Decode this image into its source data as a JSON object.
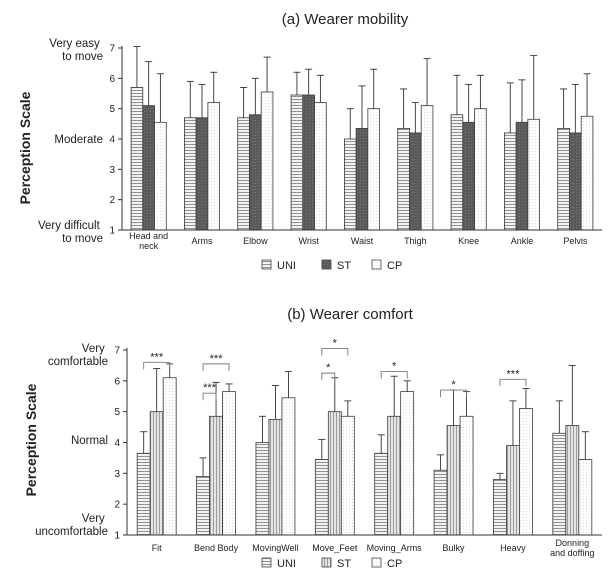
{
  "charts": [
    {
      "title": "(a) Wearer mobility",
      "ylabel": "Perception Scale",
      "ylim": [
        1,
        7
      ],
      "yticks": [
        "1",
        "2",
        "3",
        "4",
        "5",
        "6",
        "7"
      ],
      "side_labels": {
        "top": [
          "Very easy",
          "to move"
        ],
        "mid": [
          "Moderate"
        ],
        "bottom": [
          "Very difficult",
          "to move"
        ]
      },
      "legend": [
        "UNI",
        "ST",
        "CP"
      ]
    },
    {
      "title": "(b) Wearer comfort",
      "ylabel": "Perception Scale",
      "ylim": [
        1,
        7
      ],
      "yticks": [
        "1",
        "2",
        "3",
        "4",
        "5",
        "6",
        "7"
      ],
      "side_labels": {
        "top": [
          "Very",
          "comfortable"
        ],
        "mid": [
          "Normal"
        ],
        "bottom": [
          "Very",
          "uncomfortable"
        ]
      },
      "legend": [
        "UNI",
        "ST",
        "CP"
      ]
    }
  ],
  "chart_data": [
    {
      "type": "bar",
      "title": "(a) Wearer mobility",
      "ylabel": "Perception Scale",
      "ylim": [
        1,
        7
      ],
      "categories": [
        [
          "Head and",
          "neck"
        ],
        [
          "Arms"
        ],
        [
          "Elbow"
        ],
        [
          "Wrist"
        ],
        [
          "Waist"
        ],
        [
          "Thigh"
        ],
        [
          "Knee"
        ],
        [
          "Ankle"
        ],
        [
          "Pelvis"
        ]
      ],
      "series": [
        {
          "name": "UNI",
          "values": [
            5.7,
            4.7,
            4.7,
            5.45,
            4.0,
            4.35,
            4.8,
            4.2,
            4.35
          ],
          "err": [
            1.35,
            1.2,
            1.0,
            0.75,
            1.0,
            1.3,
            1.3,
            1.65,
            1.3
          ]
        },
        {
          "name": "ST",
          "values": [
            5.1,
            4.7,
            4.8,
            5.45,
            4.35,
            4.2,
            4.55,
            4.55,
            4.2
          ],
          "err": [
            1.45,
            1.1,
            1.2,
            0.85,
            1.4,
            1.0,
            1.25,
            1.4,
            1.6
          ]
        },
        {
          "name": "CP",
          "values": [
            4.55,
            5.2,
            5.55,
            5.2,
            5.0,
            5.1,
            5.0,
            4.65,
            4.75
          ],
          "err": [
            1.6,
            1.0,
            1.15,
            0.9,
            1.3,
            1.55,
            1.1,
            2.1,
            1.4
          ]
        }
      ],
      "significance": []
    },
    {
      "type": "bar",
      "title": "(b) Wearer comfort",
      "ylabel": "Perception Scale",
      "ylim": [
        1,
        7
      ],
      "categories": [
        [
          "Fit"
        ],
        [
          "Bend Body"
        ],
        [
          "MovingWell"
        ],
        [
          "Move_Feet"
        ],
        [
          "Moving_Arms"
        ],
        [
          "Bulky"
        ],
        [
          "Heavy"
        ],
        [
          "Donning",
          "and doffing"
        ]
      ],
      "series": [
        {
          "name": "UNI",
          "values": [
            3.65,
            2.9,
            4.0,
            3.45,
            3.65,
            3.1,
            2.8,
            4.3
          ],
          "err": [
            0.7,
            0.6,
            0.85,
            0.65,
            0.6,
            0.5,
            0.2,
            1.05
          ]
        },
        {
          "name": "ST",
          "values": [
            5.0,
            4.85,
            4.75,
            5.0,
            4.85,
            4.55,
            3.9,
            4.55
          ],
          "err": [
            1.4,
            1.1,
            1.1,
            1.1,
            1.3,
            1.15,
            1.45,
            1.95
          ]
        },
        {
          "name": "CP",
          "values": [
            6.1,
            5.65,
            5.45,
            4.85,
            5.65,
            4.85,
            5.1,
            3.45
          ],
          "err": [
            0.45,
            0.25,
            0.85,
            0.5,
            0.35,
            0.8,
            0.65,
            0.9
          ]
        }
      ],
      "significance": [
        {
          "cat": 0,
          "from": 0,
          "to": 2,
          "y": 6.6,
          "label": "***"
        },
        {
          "cat": 1,
          "from": 0,
          "to": 2,
          "y": 6.55,
          "label": "***"
        },
        {
          "cat": 1,
          "from": 0,
          "to": 1,
          "y": 5.6,
          "label": "***"
        },
        {
          "cat": 3,
          "from": 0,
          "to": 2,
          "y": 7.05,
          "label": "*"
        },
        {
          "cat": 3,
          "from": 0,
          "to": 1,
          "y": 6.25,
          "label": "*"
        },
        {
          "cat": 4,
          "from": 0,
          "to": 2,
          "y": 6.3,
          "label": "*"
        },
        {
          "cat": 5,
          "from": 0,
          "to": 2,
          "y": 5.7,
          "label": "*"
        },
        {
          "cat": 6,
          "from": 0,
          "to": 2,
          "y": 6.05,
          "label": "***"
        }
      ]
    }
  ]
}
